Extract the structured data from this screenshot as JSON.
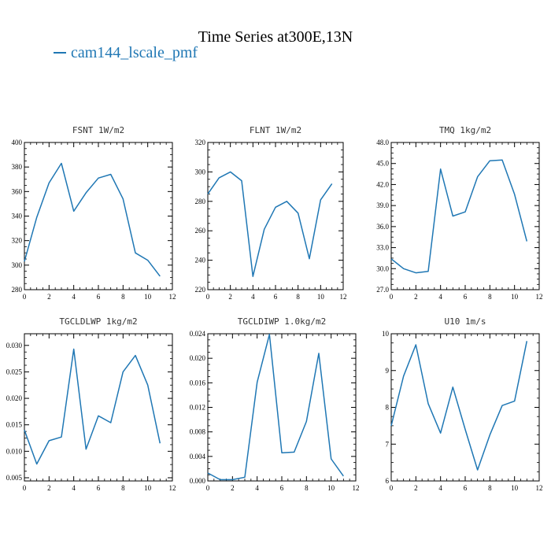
{
  "figure": {
    "title": "Time Series at300E,13N",
    "legend": "cam144_lscale_pmf",
    "line_color": "#1f77b4"
  },
  "chart_data": [
    {
      "type": "line",
      "title": "FSNT   1W/m2",
      "x": [
        0,
        1,
        2,
        3,
        4,
        5,
        6,
        7,
        8,
        9,
        10,
        11
      ],
      "series": [
        {
          "name": "cam144_lscale_pmf",
          "values": [
            303,
            339,
            367,
            383,
            344,
            359,
            371,
            374,
            354,
            310,
            304,
            291
          ]
        }
      ],
      "xlim": [
        0,
        12
      ],
      "ylim": [
        280,
        400
      ],
      "xticks": [
        0,
        2,
        4,
        6,
        8,
        10,
        12
      ],
      "yticks": [
        280,
        300,
        320,
        340,
        360,
        380,
        400
      ],
      "ytick_labels": [
        "280",
        "300",
        "320",
        "340",
        "360",
        "380",
        "400"
      ]
    },
    {
      "type": "line",
      "title": "FLNT   1W/m2",
      "x": [
        0,
        1,
        2,
        3,
        4,
        5,
        6,
        7,
        8,
        9,
        10,
        11
      ],
      "series": [
        {
          "name": "cam144_lscale_pmf",
          "values": [
            285,
            296,
            300,
            294,
            229,
            261,
            276,
            280,
            272,
            241,
            281,
            292
          ]
        }
      ],
      "xlim": [
        0,
        12
      ],
      "ylim": [
        220,
        320
      ],
      "xticks": [
        0,
        2,
        4,
        6,
        8,
        10,
        12
      ],
      "yticks": [
        220,
        240,
        260,
        280,
        300,
        320
      ],
      "ytick_labels": [
        "220",
        "240",
        "260",
        "280",
        "300",
        "320"
      ]
    },
    {
      "type": "line",
      "title": "TMQ   1kg/m2",
      "x": [
        0,
        1,
        2,
        3,
        4,
        5,
        6,
        7,
        8,
        9,
        10,
        11
      ],
      "series": [
        {
          "name": "cam144_lscale_pmf",
          "values": [
            31.4,
            30.0,
            29.4,
            29.6,
            44.2,
            37.5,
            38.1,
            43.1,
            45.4,
            45.5,
            40.6,
            33.9
          ]
        }
      ],
      "xlim": [
        0,
        12
      ],
      "ylim": [
        27,
        48
      ],
      "xticks": [
        0,
        2,
        4,
        6,
        8,
        10,
        12
      ],
      "yticks": [
        27,
        30,
        33,
        36,
        39,
        42,
        45,
        48
      ],
      "ytick_labels": [
        "27.0",
        "30.0",
        "33.0",
        "36.0",
        "39.0",
        "42.0",
        "45.0",
        "48.0"
      ]
    },
    {
      "type": "line",
      "title": "TGCLDLWP   1kg/m2",
      "x": [
        0,
        1,
        2,
        3,
        4,
        5,
        6,
        7,
        8,
        9,
        10,
        11
      ],
      "series": [
        {
          "name": "cam144_lscale_pmf",
          "values": [
            0.014,
            0.0076,
            0.012,
            0.0127,
            0.0293,
            0.0104,
            0.0167,
            0.0154,
            0.025,
            0.0281,
            0.0225,
            0.0115
          ]
        }
      ],
      "xlim": [
        0,
        12
      ],
      "ylim": [
        0.0044,
        0.0322
      ],
      "xticks": [
        0,
        2,
        4,
        6,
        8,
        10,
        12
      ],
      "yticks": [
        0.005,
        0.01,
        0.015,
        0.02,
        0.025,
        0.03
      ],
      "ytick_labels": [
        "0.005",
        "0.010",
        "0.015",
        "0.020",
        "0.025",
        "0.030"
      ]
    },
    {
      "type": "line",
      "title": "TGCLDIWP   1.0kg/m2",
      "x": [
        0,
        1,
        2,
        3,
        4,
        5,
        6,
        7,
        8,
        9,
        10,
        11
      ],
      "series": [
        {
          "name": "cam144_lscale_pmf",
          "values": [
            0.0013,
            0.0002,
            0.0002,
            0.0006,
            0.0161,
            0.0239,
            0.0046,
            0.0047,
            0.0097,
            0.0208,
            0.0036,
            0.0008
          ]
        }
      ],
      "xlim": [
        0,
        12
      ],
      "ylim": [
        0,
        0.024
      ],
      "xticks": [
        0,
        2,
        4,
        6,
        8,
        10,
        12
      ],
      "yticks": [
        0,
        0.004,
        0.008,
        0.012,
        0.016,
        0.02,
        0.024
      ],
      "ytick_labels": [
        "0.000",
        "0.004",
        "0.008",
        "0.012",
        "0.016",
        "0.020",
        "0.024"
      ]
    },
    {
      "type": "line",
      "title": "U10   1m/s",
      "x": [
        0,
        1,
        2,
        3,
        4,
        5,
        6,
        7,
        8,
        9,
        10,
        11
      ],
      "series": [
        {
          "name": "cam144_lscale_pmf",
          "values": [
            7.5,
            8.85,
            9.7,
            8.1,
            7.3,
            8.55,
            7.4,
            6.3,
            7.25,
            8.05,
            8.17,
            9.8
          ]
        }
      ],
      "xlim": [
        0,
        12
      ],
      "ylim": [
        6,
        10
      ],
      "xticks": [
        0,
        2,
        4,
        6,
        8,
        10,
        12
      ],
      "yticks": [
        6,
        7,
        8,
        9,
        10
      ],
      "ytick_labels": [
        "6",
        "7",
        "8",
        "9",
        "10"
      ]
    }
  ]
}
